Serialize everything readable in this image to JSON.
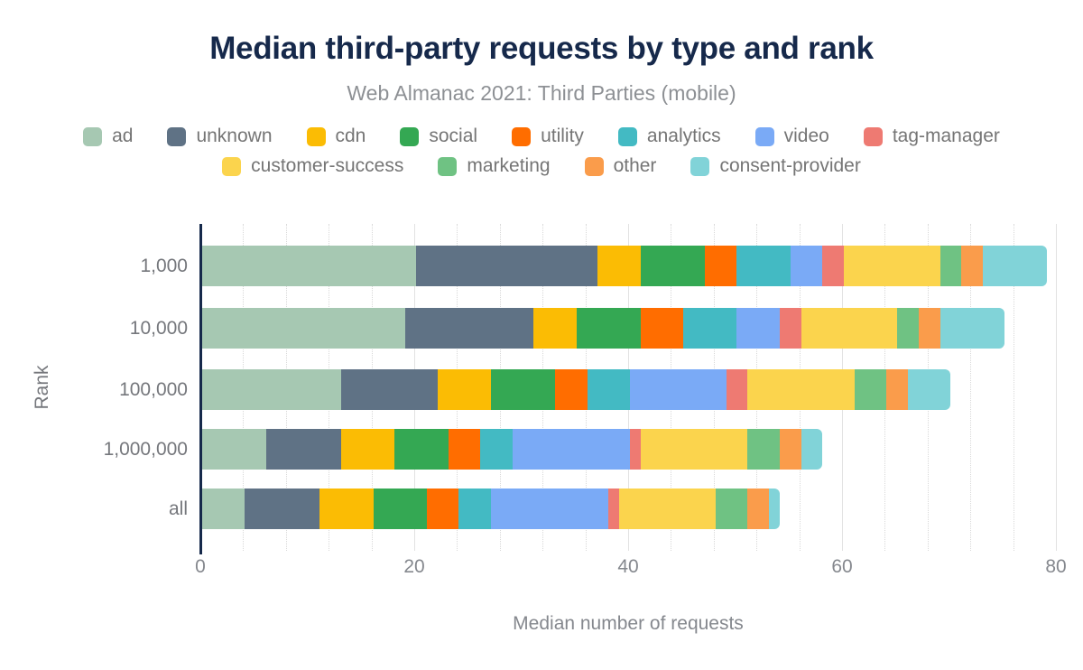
{
  "chart_data": {
    "type": "bar",
    "orientation": "horizontal",
    "stacked": true,
    "title": "Median third-party requests by type and rank",
    "subtitle": "Web Almanac 2021: Third Parties (mobile)",
    "xlabel": "Median number of requests",
    "ylabel": "Rank",
    "xlim": [
      0,
      80
    ],
    "xticks": [
      0,
      20,
      40,
      60,
      80
    ],
    "grid": {
      "minor_step": 4,
      "major_step": 20,
      "gridlines": "vertical"
    },
    "legend_position": "top",
    "legend_rows": [
      8,
      4
    ],
    "categories": [
      "1,000",
      "10,000",
      "100,000",
      "1,000,000",
      "all"
    ],
    "series": [
      {
        "name": "ad",
        "color": "#a6c8b2",
        "values": [
          20,
          19,
          13,
          6,
          4
        ]
      },
      {
        "name": "unknown",
        "color": "#5f7285",
        "values": [
          17,
          12,
          9,
          7,
          7
        ]
      },
      {
        "name": "cdn",
        "color": "#fbbc04",
        "values": [
          4,
          4,
          5,
          5,
          5
        ]
      },
      {
        "name": "social",
        "color": "#34a853",
        "values": [
          6,
          6,
          6,
          5,
          5
        ]
      },
      {
        "name": "utility",
        "color": "#ff6d00",
        "values": [
          3,
          4,
          3,
          3,
          3
        ]
      },
      {
        "name": "analytics",
        "color": "#43bac3",
        "values": [
          5,
          5,
          4,
          3,
          3
        ]
      },
      {
        "name": "video",
        "color": "#7aaaf6",
        "values": [
          3,
          4,
          9,
          11,
          11
        ]
      },
      {
        "name": "tag-manager",
        "color": "#ee7a72",
        "values": [
          2,
          2,
          2,
          1,
          1
        ]
      },
      {
        "name": "customer-success",
        "color": "#fbd44d",
        "values": [
          9,
          9,
          10,
          10,
          9
        ]
      },
      {
        "name": "marketing",
        "color": "#6fc283",
        "values": [
          2,
          2,
          3,
          3,
          3
        ]
      },
      {
        "name": "other",
        "color": "#fa9c4b",
        "values": [
          2,
          2,
          2,
          2,
          2
        ]
      },
      {
        "name": "consent-provider",
        "color": "#81d3d8",
        "values": [
          6,
          6,
          4,
          2,
          1
        ]
      }
    ],
    "colors": {
      "title_navy": "#16294b",
      "axis_line_navy": "#16294b",
      "text_gray": "#757575",
      "tick_gray": "#85888e",
      "gridline_major": "#e2e2e2",
      "gridline_minor": "#d9d9d9",
      "background": "#ffffff"
    }
  }
}
